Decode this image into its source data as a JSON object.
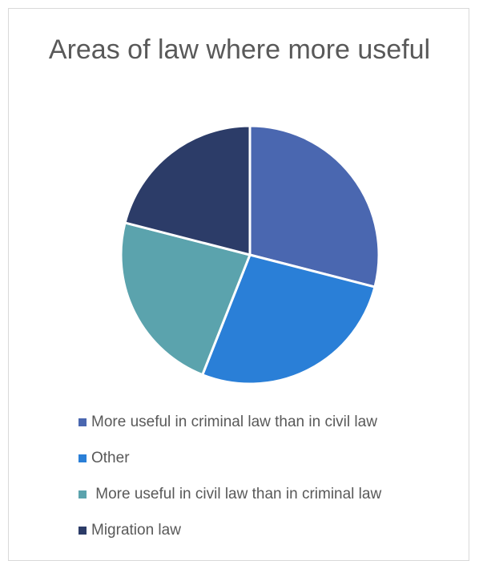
{
  "chart_data": {
    "type": "pie",
    "title": "Areas of law where more useful",
    "categories": [
      "More useful in criminal law than in civil law",
      "Other",
      " More useful in civil law than in criminal law",
      "Migration law"
    ],
    "values": [
      29,
      27,
      23,
      21
    ],
    "colors": [
      "#4a67b0",
      "#2a7fd7",
      "#5ba3ad",
      "#2c3c68"
    ],
    "legend_position": "bottom"
  }
}
